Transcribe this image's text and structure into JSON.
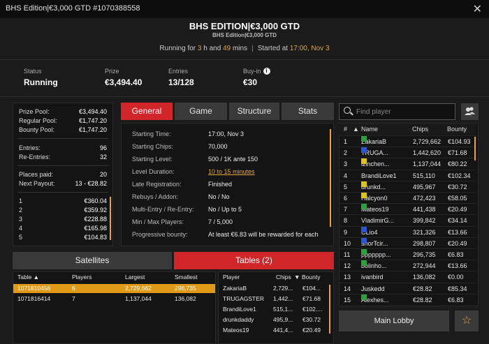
{
  "window": {
    "title": "BHS Edition|€3,000 GTD #1070388558",
    "close": "✕"
  },
  "header": {
    "title": "BHS EDITION|€3,000 GTD",
    "subtitle": "BHS Edition|€3,000 GTD",
    "running_prefix": "Running for ",
    "running_hours": "3",
    "running_mid": " h and ",
    "running_mins": "49",
    "running_suffix": " mins",
    "started_label": "Started at ",
    "started_value": "17:00, Nov 3"
  },
  "stats": {
    "status_label": "Status",
    "status_value": "Running",
    "prize_label": "Prize",
    "prize_value": "€3,494.40",
    "entries_label": "Entries",
    "entries_value": "13/128",
    "buyin_label": "Buy-in",
    "buyin_value": "€30",
    "buyin_info": "i"
  },
  "prize": {
    "rows": [
      {
        "label": "Prize Pool:",
        "value": "€3,494.40"
      },
      {
        "label": "Regular Pool:",
        "value": "€1,747.20"
      },
      {
        "label": "Bounty Pool:",
        "value": "€1,747.20"
      },
      {
        "label": "Entries:",
        "value": "96"
      },
      {
        "label": "Re-Entries:",
        "value": "32"
      },
      {
        "label": "Places paid:",
        "value": "20"
      },
      {
        "label": "Next Payout:",
        "value": "13 - €28.82"
      }
    ],
    "payouts": [
      {
        "place": "1",
        "amount": "€360.04"
      },
      {
        "place": "2",
        "amount": "€359.92"
      },
      {
        "place": "3",
        "amount": "€228.88"
      },
      {
        "place": "4",
        "amount": "€165.98"
      },
      {
        "place": "5",
        "amount": "€104.83"
      }
    ]
  },
  "tabs": [
    "General",
    "Game",
    "Structure",
    "Stats"
  ],
  "general": {
    "rows": [
      {
        "label": "Starting Time:",
        "value": "17:00, Nov 3"
      },
      {
        "label": "Starting Chips:",
        "value": "70,000"
      },
      {
        "label": "Starting Level:",
        "value": "500 / 1K ante 150"
      },
      {
        "label": "Level Duration:",
        "value": "10 to 15 minutes"
      },
      {
        "label": "Late Registration:",
        "value": "Finished"
      },
      {
        "label": "Rebuys / Addon:",
        "value": "No / No"
      },
      {
        "label": "Multi-Entry / Re-Entry:",
        "value": "No / Up to 5"
      },
      {
        "label": "Min / Max Players:",
        "value": "7 / 5,000"
      },
      {
        "label": "Progressive bounty:",
        "value": "At least €6.83 will be rewarded for each"
      }
    ]
  },
  "sat_tabs": {
    "satellites": "Satellites",
    "tables": "Tables (2)"
  },
  "tables": {
    "headers": [
      "Table ▲",
      "Players",
      "Largest",
      "Smallest"
    ],
    "rows": [
      [
        "1071810456",
        "6",
        "2,729,662",
        "296,735"
      ],
      [
        "1071816414",
        "7",
        "1,137,044",
        "136,082"
      ]
    ]
  },
  "table_players": {
    "headers": [
      "Player",
      "Chips",
      "▼",
      "Bounty"
    ],
    "rows": [
      [
        "ZakariaB",
        "2,729...",
        "€104..."
      ],
      [
        "TRUGAGSTER",
        "1,442...",
        "€71.68"
      ],
      [
        "BrandiLove1",
        "515,1...",
        "€102...."
      ],
      [
        "drunkdaddy",
        "495,9...",
        "€30.72"
      ],
      [
        "Mateos19",
        "441,4...",
        "€20.49"
      ]
    ]
  },
  "search": {
    "placeholder": "Find player"
  },
  "players": {
    "headers": [
      "#",
      "▲",
      "Name",
      "Chips",
      "Bounty"
    ],
    "rows": [
      {
        "rank": "1",
        "flag": "#2e9e3f",
        "name": "ZakariaB",
        "chips": "2,729,662",
        "bounty": "€104.93"
      },
      {
        "rank": "2",
        "flag": "#2f56c8",
        "name": "TRUGA...",
        "chips": "1,442,620",
        "bounty": "€71.68"
      },
      {
        "rank": "3",
        "flag": "#e0c21f",
        "name": "izinchen...",
        "chips": "1,137,044",
        "bounty": "€80.22"
      },
      {
        "rank": "4",
        "flag": "",
        "name": "BrandiLove1",
        "chips": "515,110",
        "bounty": "€102.34"
      },
      {
        "rank": "5",
        "flag": "#e0c21f",
        "name": "drunkd...",
        "chips": "495,967",
        "bounty": "€30.72"
      },
      {
        "rank": "6",
        "flag": "#e0c21f",
        "name": "Halcyon0",
        "chips": "472,423",
        "bounty": "€58.05"
      },
      {
        "rank": "7",
        "flag": "#2e9e3f",
        "name": "Mateos19",
        "chips": "441,438",
        "bounty": "€20.49"
      },
      {
        "rank": "8",
        "flag": "",
        "name": "VladimirG...",
        "chips": "399,842",
        "bounty": "€34.14"
      },
      {
        "rank": "9",
        "flag": "#2f56c8",
        "name": "CLio4",
        "chips": "321,326",
        "bounty": "€13.66"
      },
      {
        "rank": "10",
        "flag": "#2f56c8",
        "name": "shorTcir...",
        "chips": "298,807",
        "bounty": "€20.49"
      },
      {
        "rank": "11",
        "flag": "#2e9e3f",
        "name": "ppppppp...",
        "chips": "296,735",
        "bounty": "€6.83"
      },
      {
        "rank": "12",
        "flag": "#2e9e3f",
        "name": "bolinho...",
        "chips": "272,944",
        "bounty": "€13.66"
      },
      {
        "rank": "13",
        "flag": "",
        "name": "ivanbird",
        "chips": "136,082",
        "bounty": "€0.00"
      },
      {
        "rank": "14",
        "flag": "",
        "name": "Juskedd",
        "chips": "€28.82",
        "bounty": "€85.34"
      },
      {
        "rank": "15",
        "flag": "#2e9e3f",
        "name": "Alexhes...",
        "chips": "€28.82",
        "bounty": "€6.83"
      }
    ]
  },
  "footer": {
    "main_lobby": "Main Lobby",
    "star": "☆"
  },
  "colors": {
    "accent_red": "#d0262a",
    "accent_orange": "#e8a33a"
  }
}
